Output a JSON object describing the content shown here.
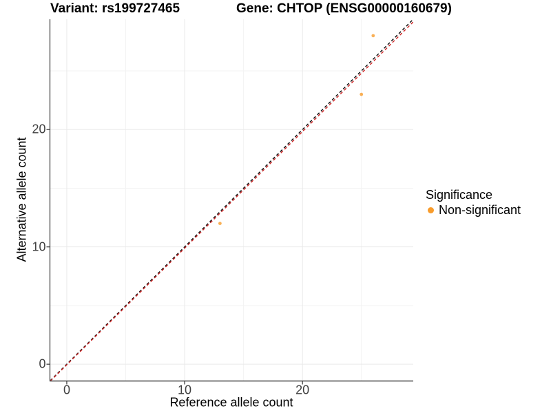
{
  "chart_data": {
    "type": "scatter",
    "title_left": "Variant: rs199727465",
    "title_right": "Gene: CHTOP (ENSG00000160679)",
    "xlabel": "Reference allele count",
    "ylabel": "Alternative allele count",
    "xlim": [
      -1.4,
      29.4
    ],
    "ylim": [
      -1.4,
      29.4
    ],
    "x_major_ticks": [
      0,
      10,
      20
    ],
    "x_minor_ticks": [
      5,
      15,
      25
    ],
    "y_major_ticks": [
      0,
      10,
      20
    ],
    "y_minor_ticks": [
      5,
      15,
      25
    ],
    "grid": true,
    "legend": {
      "title": "Significance",
      "position": "right",
      "items": [
        {
          "label": "Non-significant",
          "color": "#F89C2C"
        }
      ]
    },
    "series": [
      {
        "name": "Non-significant",
        "color": "#F89C2C",
        "points": [
          {
            "x": 13,
            "y": 12
          },
          {
            "x": 25,
            "y": 23
          },
          {
            "x": 26,
            "y": 28
          }
        ]
      }
    ],
    "lines": [
      {
        "name": "identity-line",
        "slope": 1,
        "intercept": 0,
        "color": "#151515",
        "style": "dashed"
      },
      {
        "name": "fit-line",
        "slope": 0.994,
        "intercept": -0.05,
        "color": "#CE2B2B",
        "style": "dashed"
      }
    ],
    "colors": {
      "grid_major": "#E9E9E9",
      "grid_minor": "#F3F3F3",
      "axis": "#474747",
      "tick": "#333333",
      "tick_label": "#404040"
    }
  }
}
